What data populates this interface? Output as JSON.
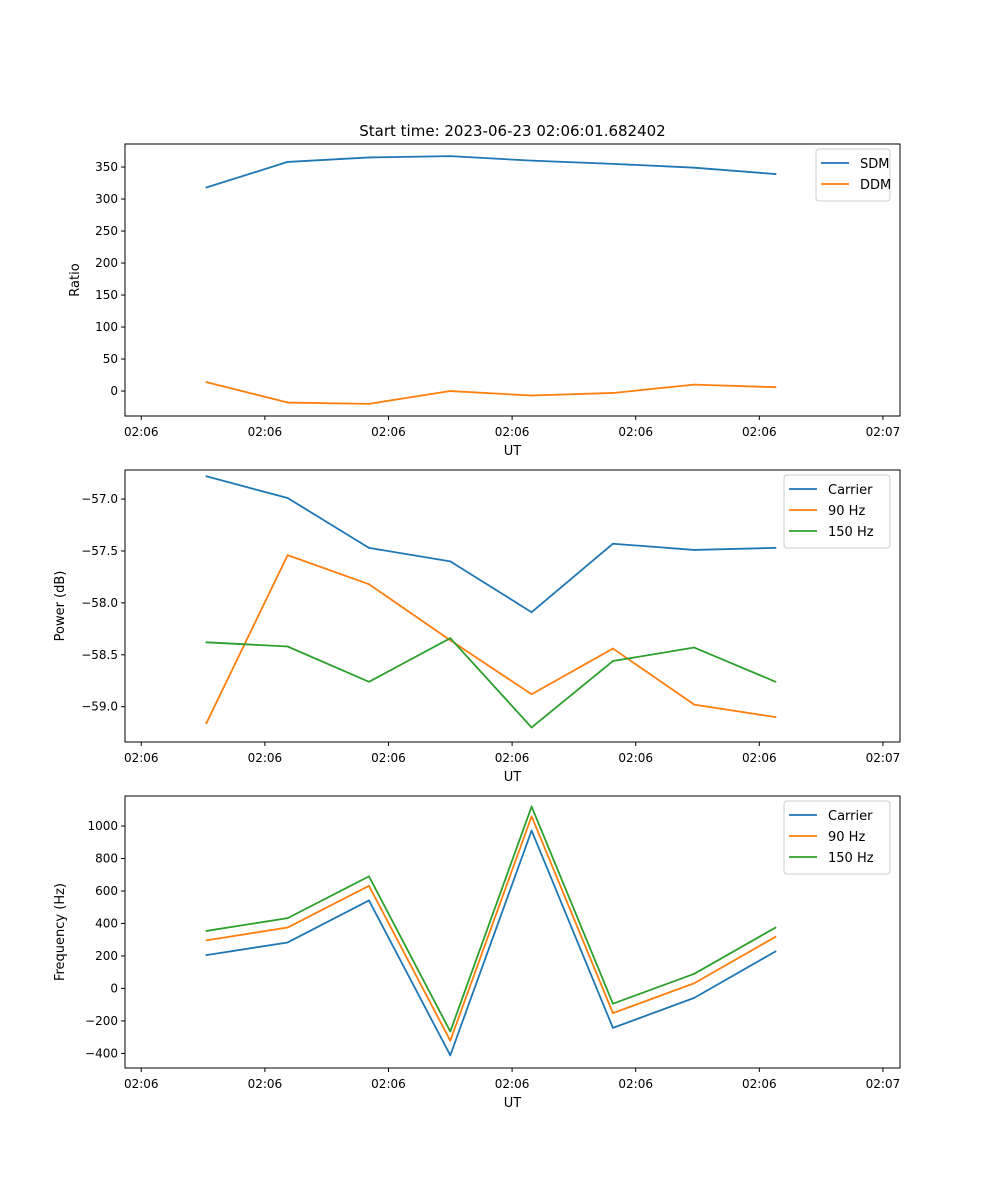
{
  "title": "Start time: 2023-06-23 02:06:01.682402",
  "chart_data": [
    {
      "type": "line",
      "xlabel": "UT",
      "ylabel": "Ratio",
      "x": [
        1,
        2,
        3,
        4,
        5,
        6,
        7,
        8
      ],
      "x_tick_values": [
        0.2,
        1.72,
        3.24,
        4.76,
        6.28,
        7.8,
        9.32
      ],
      "x_tick_labels": [
        "02:06",
        "02:06",
        "02:06",
        "02:06",
        "02:06",
        "02:06",
        "02:07"
      ],
      "xlim": [
        0,
        9.53
      ],
      "ylim": [
        -39,
        386
      ],
      "y_ticks": [
        0,
        50,
        100,
        150,
        200,
        250,
        300,
        350
      ],
      "y_tick_labels": [
        "0",
        "50",
        "100",
        "150",
        "200",
        "250",
        "300",
        "350"
      ],
      "legend": "top-right",
      "series": [
        {
          "name": "SDM",
          "color": "#1f77b4",
          "values": [
            318,
            358,
            365,
            367,
            360,
            355,
            349,
            339
          ]
        },
        {
          "name": "DDM",
          "color": "#ff7f0e",
          "values": [
            14,
            -18,
            -20,
            0,
            -7,
            -3,
            10,
            6
          ]
        }
      ]
    },
    {
      "type": "line",
      "xlabel": "UT",
      "ylabel": "Power (dB)",
      "x": [
        1,
        2,
        3,
        4,
        5,
        6,
        7,
        8
      ],
      "x_tick_values": [
        0.2,
        1.72,
        3.24,
        4.76,
        6.28,
        7.8,
        9.32
      ],
      "x_tick_labels": [
        "02:06",
        "02:06",
        "02:06",
        "02:06",
        "02:06",
        "02:06",
        "02:07"
      ],
      "xlim": [
        0,
        9.53
      ],
      "ylim": [
        -59.34,
        -56.72
      ],
      "y_ticks": [
        -59.0,
        -58.5,
        -58.0,
        -57.5,
        -57.0
      ],
      "y_tick_labels": [
        "−59.0",
        "−58.5",
        "−58.0",
        "−57.5",
        "−57.0"
      ],
      "legend": "top-right",
      "series": [
        {
          "name": "Carrier",
          "color": "#1f77b4",
          "values": [
            -56.78,
            -56.99,
            -57.47,
            -57.6,
            -58.09,
            -57.43,
            -57.49,
            -57.47
          ]
        },
        {
          "name": "90 Hz",
          "color": "#ff7f0e",
          "values": [
            -59.16,
            -57.54,
            -57.82,
            -58.36,
            -58.88,
            -58.44,
            -58.98,
            -59.1
          ]
        },
        {
          "name": "150 Hz",
          "color": "#2ca02c",
          "values": [
            -58.38,
            -58.42,
            -58.76,
            -58.34,
            -59.2,
            -58.56,
            -58.43,
            -58.76
          ]
        }
      ]
    },
    {
      "type": "line",
      "xlabel": "UT",
      "ylabel": "Frequency (Hz)",
      "x": [
        1,
        2,
        3,
        4,
        5,
        6,
        7,
        8
      ],
      "x_tick_values": [
        0.2,
        1.72,
        3.24,
        4.76,
        6.28,
        7.8,
        9.32
      ],
      "x_tick_labels": [
        "02:06",
        "02:06",
        "02:06",
        "02:06",
        "02:06",
        "02:06",
        "02:07"
      ],
      "xlim": [
        0,
        9.53
      ],
      "ylim": [
        -490,
        1185
      ],
      "y_ticks": [
        -400,
        -200,
        0,
        200,
        400,
        600,
        800,
        1000
      ],
      "y_tick_labels": [
        "−400",
        "−200",
        "0",
        "200",
        "400",
        "600",
        "800",
        "1000"
      ],
      "legend": "top-right",
      "series": [
        {
          "name": "Carrier",
          "color": "#1f77b4",
          "values": [
            205,
            283,
            542,
            -412,
            972,
            -243,
            -58,
            228
          ]
        },
        {
          "name": "90 Hz",
          "color": "#ff7f0e",
          "values": [
            296,
            375,
            632,
            -322,
            1060,
            -152,
            32,
            318
          ]
        },
        {
          "name": "150 Hz",
          "color": "#2ca02c",
          "values": [
            354,
            433,
            690,
            -265,
            1120,
            -94,
            90,
            375
          ]
        }
      ]
    }
  ]
}
